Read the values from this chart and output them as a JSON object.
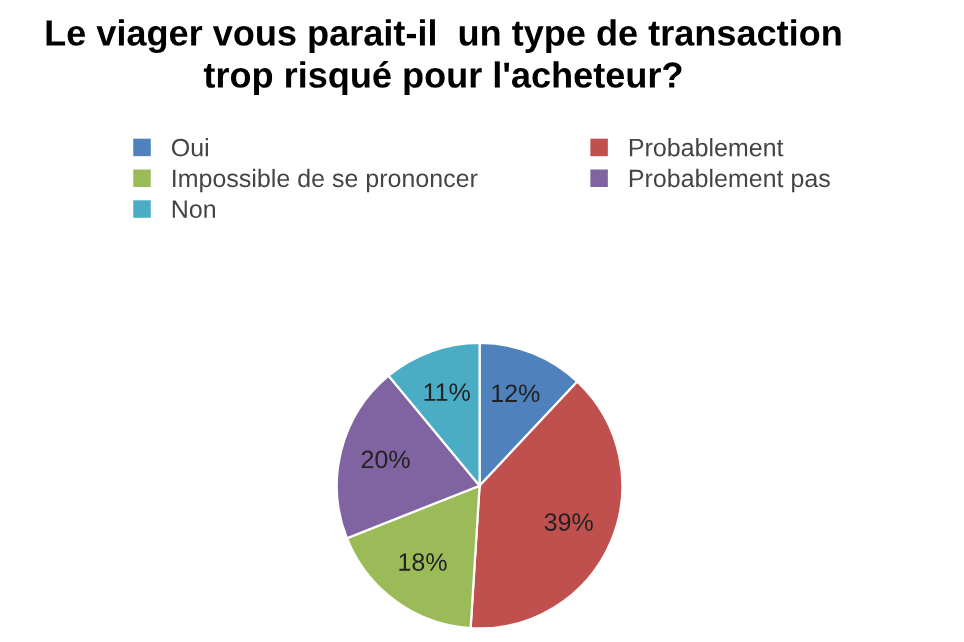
{
  "chart_data": {
    "type": "pie",
    "title": "Le viager vous parait-il  un type de transaction\ntrop risqué pour l'acheteur?",
    "categories": [
      "Oui",
      "Probablement",
      "Impossible de se prononcer",
      "Probablement pas",
      "Non"
    ],
    "values": [
      12,
      39,
      18,
      20,
      11
    ],
    "colors": [
      "#4f81bd",
      "#c0504d",
      "#9bbb59",
      "#8064a2",
      "#4bacc6"
    ],
    "value_labels": [
      "12%",
      "39%",
      "18%",
      "20%",
      "11%"
    ],
    "legend": "top"
  }
}
